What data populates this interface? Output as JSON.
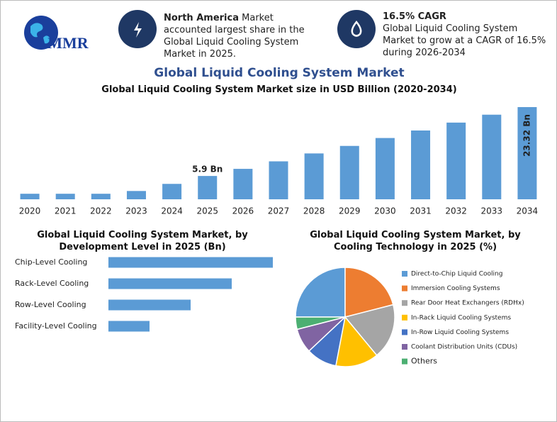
{
  "header": {
    "logo": "MMR",
    "highlights": [
      {
        "bold": "North America",
        "text": "Market accounted largest share in the Global Liquid Cooling System Market in 2025."
      },
      {
        "bold": "16.5% CAGR",
        "text": "Global Liquid Cooling System Market to grow at a CAGR of 16.5% during 2026-2034"
      }
    ]
  },
  "chart_data": [
    {
      "type": "bar",
      "title": "Global Liquid Cooling System Market",
      "subtitle": "Global Liquid Cooling System Market size in USD Billion (2020-2034)",
      "categories": [
        "2020",
        "2021",
        "2022",
        "2023",
        "2024",
        "2025",
        "2026",
        "2027",
        "2028",
        "2029",
        "2030",
        "2031",
        "2032",
        "2033",
        "2034"
      ],
      "values": [
        1.4,
        1.4,
        1.4,
        2.1,
        3.9,
        5.9,
        7.7,
        9.6,
        11.6,
        13.5,
        15.5,
        17.4,
        19.4,
        21.4,
        23.32
      ],
      "value_labels": [
        null,
        null,
        null,
        null,
        null,
        "5.9 Bn",
        null,
        null,
        null,
        null,
        null,
        null,
        null,
        null,
        "23.32 Bn"
      ],
      "color": "#5b9bd5"
    },
    {
      "type": "hbar",
      "title": "Global Liquid Cooling System Market, by Development Level in 2025 (Bn)",
      "categories": [
        "Chip-Level Cooling",
        "Rack-Level Cooling",
        "Row-Level Cooling",
        "Facility-Level Cooling"
      ],
      "values": [
        2.36,
        1.77,
        1.18,
        0.59
      ],
      "color": "#5b9bd5"
    },
    {
      "type": "pie",
      "title": "Global Liquid Cooling System Market, by Cooling Technology in 2025 (%)",
      "categories": [
        "Direct-to-Chip Liquid Cooling",
        "Immersion Cooling Systems",
        "Rear Door Heat Exchangers (RDHx)",
        "In-Rack Liquid Cooling Systems",
        "In-Row Liquid Cooling Systems",
        "Coolant Distribution Units (CDUs)",
        "Others"
      ],
      "values": [
        25,
        21,
        18,
        14,
        10,
        8,
        4
      ],
      "colors": [
        "#5b9bd5",
        "#ed7d31",
        "#a5a5a5",
        "#ffc000",
        "#4472c4",
        "#8064a2",
        "#4caf72"
      ]
    }
  ]
}
